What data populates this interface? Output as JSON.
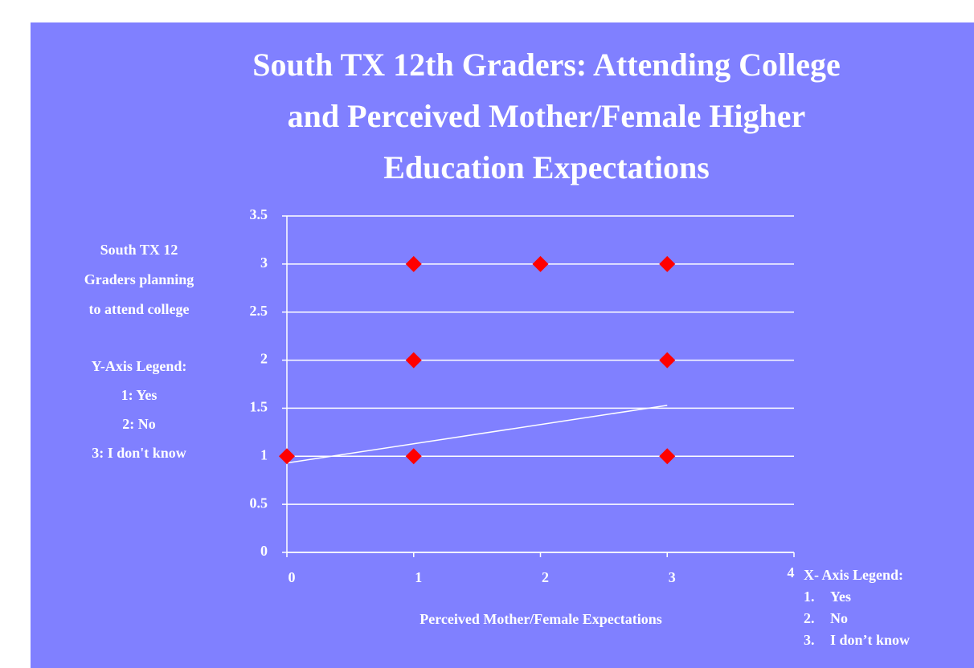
{
  "chart_data": {
    "type": "scatter",
    "title": [
      "South TX 12th Graders: Attending College",
      "and Perceived Mother/Female Higher",
      "Education Expectations"
    ],
    "xlabel": "Perceived Mother/Female Expectations",
    "x": [
      0,
      1,
      1,
      1,
      2,
      3,
      3,
      3
    ],
    "values": [
      1,
      3,
      2,
      1,
      3,
      3,
      2,
      1
    ],
    "color": "#ff0000",
    "trendline": {
      "x": [
        0,
        3
      ],
      "values": [
        0.93,
        1.53
      ],
      "color": "#ffffff"
    },
    "xlim": [
      0,
      4
    ],
    "ylim": [
      0,
      3.5
    ],
    "xticks": [
      0,
      1,
      2,
      3,
      4
    ],
    "yticks": [
      0,
      0.5,
      1,
      1.5,
      2,
      2.5,
      3,
      3.5
    ],
    "grid": true,
    "y_annotation": [
      "South TX 12",
      "Graders planning",
      "to attend college"
    ],
    "y_legend": {
      "title": "Y-Axis Legend:",
      "items": [
        "1: Yes",
        "2: No",
        "3: I don't know"
      ]
    },
    "x_legend": {
      "title": "X- Axis Legend:",
      "items": [
        {
          "number": "1.",
          "label": "Yes"
        },
        {
          "number": "2.",
          "label": "No"
        },
        {
          "number": "3.",
          "label": "I don’t know"
        }
      ]
    }
  }
}
